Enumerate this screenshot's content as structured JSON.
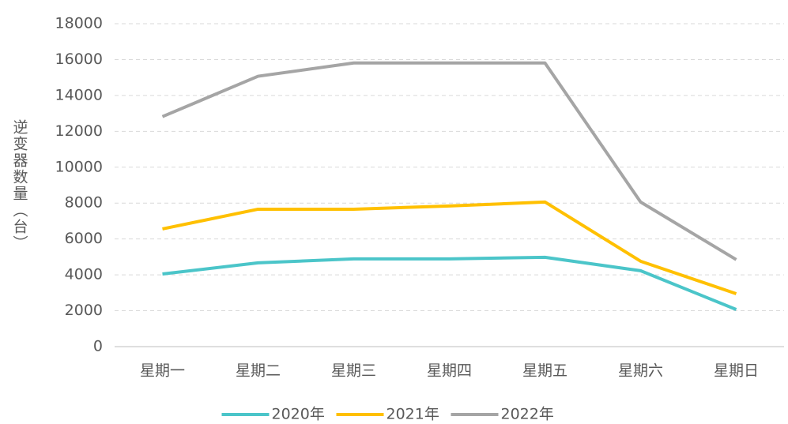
{
  "chart_data": {
    "type": "line",
    "y_label": "逆变器数量（台）",
    "categories": [
      "星期一",
      "星期二",
      "星期三",
      "星期四",
      "星期五",
      "星期六",
      "星期日"
    ],
    "series": [
      {
        "name": "2020年",
        "color": "#4bc5c9",
        "values": [
          4050,
          4670,
          4890,
          4890,
          4980,
          4230,
          2070
        ]
      },
      {
        "name": "2021年",
        "color": "#ffc000",
        "values": [
          6560,
          7660,
          7660,
          7840,
          8060,
          4760,
          2950
        ]
      },
      {
        "name": "2022年",
        "color": "#a5a5a5",
        "values": [
          12820,
          15070,
          15810,
          15810,
          15810,
          8060,
          4850
        ]
      }
    ],
    "ylim": [
      0,
      18000
    ],
    "yticks": [
      0,
      2000,
      4000,
      6000,
      8000,
      10000,
      12000,
      14000,
      16000,
      18000
    ],
    "grid": true,
    "legend": "bottom"
  }
}
